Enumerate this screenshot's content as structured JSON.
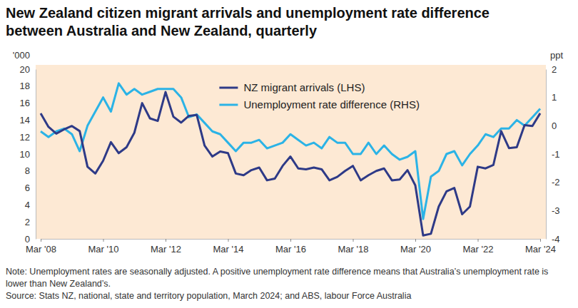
{
  "chart_data": {
    "type": "line",
    "title": "New Zealand citizen migrant arrivals and unemployment rate difference between Australia and New Zealand, quarterly",
    "y_label": "'000",
    "y2_label": "ppt",
    "notes": [
      "Note: Unemployment rates are seasonally adjusted. A positive unemployment rate difference means that Australia’s unemployment rate is lower than New Zealand’s.",
      "Source: Stats NZ, national, state and territory population, March 2024; and ABS, labour Force Australia"
    ],
    "categories": [
      "Mar '08",
      null,
      null,
      null,
      null,
      null,
      null,
      null,
      "Mar '10",
      null,
      null,
      null,
      null,
      null,
      null,
      null,
      "Mar '12",
      null,
      null,
      null,
      null,
      null,
      null,
      null,
      "Mar '14",
      null,
      null,
      null,
      null,
      null,
      null,
      null,
      "Mar '16",
      null,
      null,
      null,
      null,
      null,
      null,
      null,
      "Mar '18",
      null,
      null,
      null,
      null,
      null,
      null,
      null,
      "Mar '20",
      null,
      null,
      null,
      null,
      null,
      null,
      null,
      "Mar '22",
      null,
      null,
      null,
      null,
      null,
      null,
      null,
      "Mar '24"
    ],
    "series": [
      {
        "name": "NZ migrant arrivals (LHS)",
        "color": "#2e3a87",
        "axis": "y",
        "values": [
          14.8,
          13.2,
          12.4,
          12.9,
          13.3,
          12.7,
          8.5,
          7.7,
          9.2,
          11.4,
          10.1,
          10.8,
          12.5,
          16.0,
          14.2,
          13.9,
          17.3,
          14.4,
          13.7,
          14.5,
          14.6,
          11.0,
          9.7,
          10.3,
          10.1,
          7.7,
          7.5,
          8.1,
          8.4,
          6.9,
          7.1,
          8.6,
          9.7,
          8.3,
          8.2,
          8.4,
          8.2,
          6.9,
          7.3,
          8.0,
          8.6,
          6.9,
          7.5,
          8.0,
          8.3,
          6.9,
          7.0,
          8.1,
          6.3,
          0.4,
          0.6,
          3.8,
          5.6,
          6.0,
          2.9,
          3.8,
          8.5,
          8.3,
          8.7,
          12.7,
          10.7,
          10.8,
          13.4,
          13.3,
          14.8
        ]
      },
      {
        "name": "Unemployment rate difference (RHS)",
        "color": "#2bb3e6",
        "axis": "y2",
        "values": [
          -0.2,
          -0.4,
          -0.2,
          -0.1,
          -0.3,
          -0.9,
          0.0,
          0.5,
          1.0,
          0.5,
          1.5,
          1.1,
          1.3,
          1.1,
          1.2,
          1.3,
          1.3,
          1.3,
          1.0,
          0.3,
          0.4,
          0.1,
          -0.2,
          -0.3,
          -0.6,
          -0.9,
          -0.6,
          -0.6,
          -0.5,
          -0.8,
          -0.7,
          -0.6,
          -0.3,
          -0.5,
          -0.7,
          -0.6,
          -0.8,
          -0.4,
          -0.6,
          -0.6,
          -1.0,
          -1.0,
          -0.6,
          -1.0,
          -0.7,
          -1.0,
          -1.2,
          -1.1,
          -0.9,
          -3.3,
          -1.8,
          -1.6,
          -1.0,
          -0.9,
          -1.4,
          -1.0,
          -0.7,
          -0.3,
          -0.4,
          -0.1,
          -0.1,
          0.2,
          0.0,
          0.3,
          0.6
        ]
      }
    ],
    "ylim": [
      0,
      20
    ],
    "yticks": [
      0,
      2,
      4,
      6,
      8,
      10,
      12,
      14,
      16,
      18,
      20
    ],
    "y2lim": [
      -4,
      2
    ],
    "y2ticks": [
      -4,
      -3,
      -2,
      -1,
      0,
      1,
      2
    ],
    "grid": false,
    "legend": "top"
  }
}
